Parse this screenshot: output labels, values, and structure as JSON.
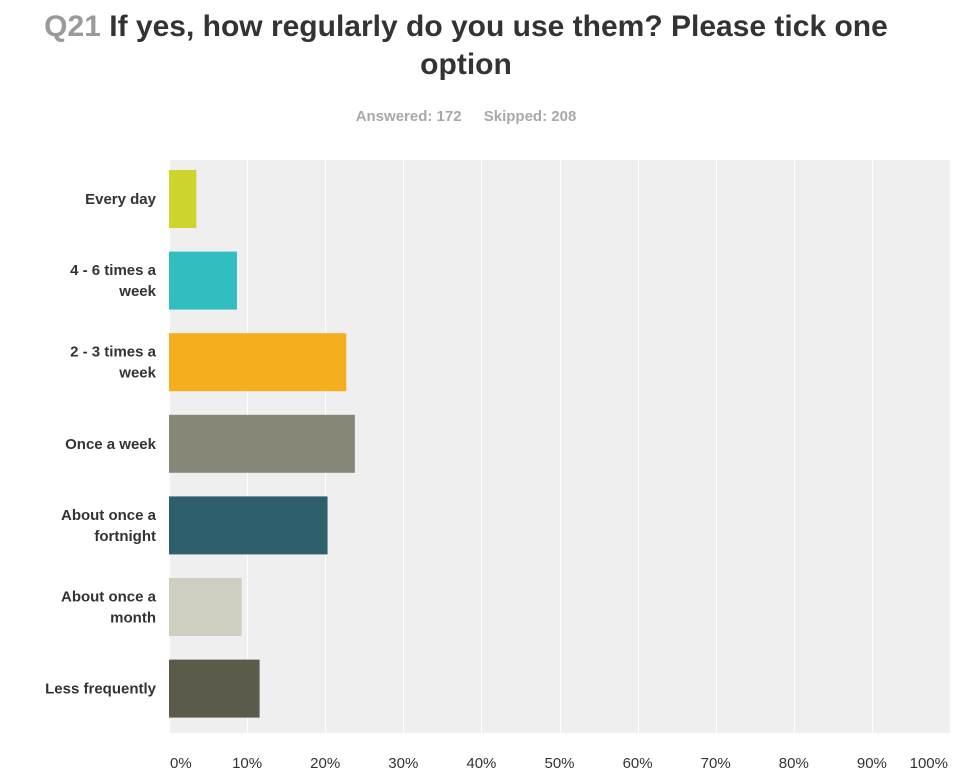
{
  "header": {
    "question_number": "Q21",
    "question_text": "If yes, how regularly do you use them? Please tick one option",
    "answered": "Answered: 172",
    "skipped": "Skipped: 208"
  },
  "chart_data": {
    "type": "bar",
    "orientation": "horizontal",
    "categories": [
      "Every day",
      "4 - 6 times a week",
      "2 - 3 times a week",
      "Once a week",
      "About once a fortnight",
      "About once a month",
      "Less frequently"
    ],
    "category_lines": [
      [
        "Every day"
      ],
      [
        "4 - 6 times a",
        "week"
      ],
      [
        "2 - 3 times a",
        "week"
      ],
      [
        "Once a week"
      ],
      [
        "About once a",
        "fortnight"
      ],
      [
        "About once a",
        "month"
      ],
      [
        "Less frequently"
      ]
    ],
    "values": [
      3.5,
      8.7,
      22.7,
      23.8,
      20.3,
      9.3,
      11.6
    ],
    "unit": "%",
    "colors": [
      "#cdd42b",
      "#32bec1",
      "#f5ae1e",
      "#878778",
      "#2e5f6d",
      "#cfcfc1",
      "#5c5b4b"
    ],
    "xlim": [
      0,
      100
    ],
    "xticks": [
      0,
      10,
      20,
      30,
      40,
      50,
      60,
      70,
      80,
      90,
      100
    ],
    "xtick_labels": [
      "0%",
      "10%",
      "20%",
      "30%",
      "40%",
      "50%",
      "60%",
      "70%",
      "80%",
      "90%",
      "100%"
    ],
    "grid": true,
    "plot_background": "#efefef",
    "gridline_color": "#ffffff"
  }
}
